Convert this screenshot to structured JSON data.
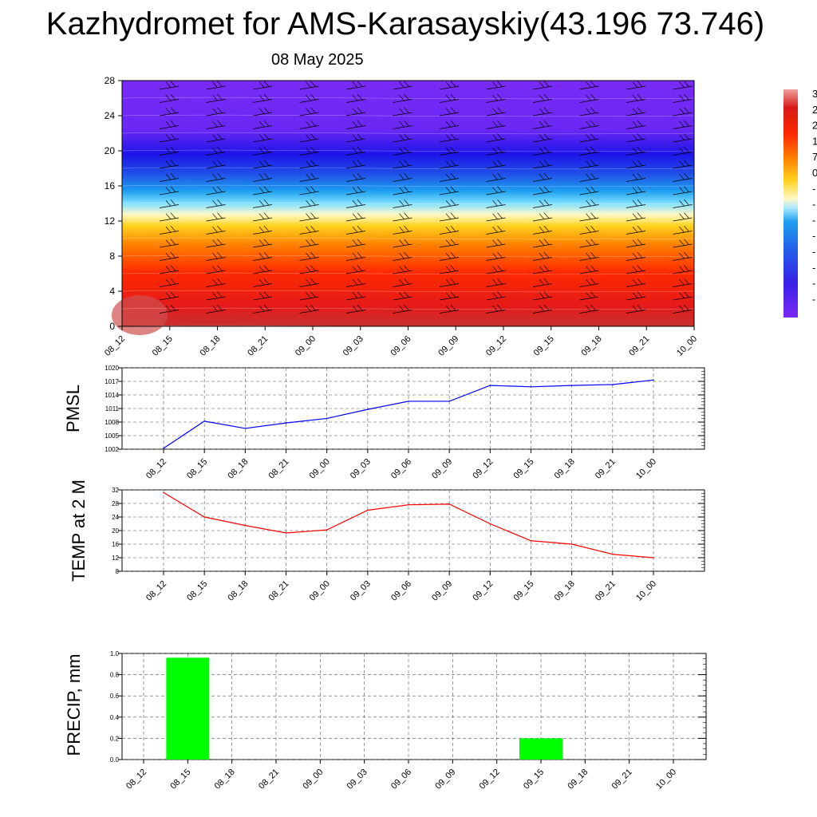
{
  "header": {
    "title": "Kazhydromet for AMS-Karasayskiy(43.196 73.746)",
    "subtitle": "08 May 2025"
  },
  "time_labels": [
    "08_12",
    "08_15",
    "08_18",
    "08_21",
    "09_00",
    "09_03",
    "09_06",
    "09_09",
    "09_12",
    "09_15",
    "09_18",
    "09_21",
    "10_00"
  ],
  "colors": {
    "pmsl_line": "#0000ff",
    "temp_line": "#ff0000",
    "precip_bar": "#00ff00",
    "grid": "#555555"
  },
  "chart_data": [
    {
      "type": "heatmap",
      "title": "Kazhydromet for AMS-Karasayskiy(43.196 73.746)",
      "subtitle": "08 May 2025",
      "x_categories": [
        "08_12",
        "08_15",
        "08_18",
        "08_21",
        "09_00",
        "09_03",
        "09_06",
        "09_09",
        "09_12",
        "09_15",
        "09_18",
        "09_21",
        "10_00"
      ],
      "y_ticks": [
        0,
        4,
        8,
        12,
        16,
        20,
        24,
        28
      ],
      "ylim": [
        0,
        28
      ],
      "colorbar_labels": [
        "3",
        "2",
        "2",
        "1",
        "7",
        "0",
        "-",
        "-",
        "-",
        "-",
        "-",
        "-",
        "-",
        "-"
      ],
      "colormap": "purple-blue-cyan-yellow-orange-red",
      "grid": false,
      "barbs": true
    },
    {
      "type": "line",
      "ylabel": "PMSL",
      "x": [
        "08_12",
        "08_15",
        "08_18",
        "08_21",
        "09_00",
        "09_03",
        "09_06",
        "09_09",
        "09_12",
        "09_15",
        "09_18",
        "09_21",
        "10_00"
      ],
      "y_ticks": [
        1002,
        1005,
        1008,
        1011,
        1014,
        1017,
        1020
      ],
      "ylim": [
        1002,
        1020
      ],
      "values": [
        1002.2,
        1008.2,
        1006.6,
        1007.8,
        1008.8,
        1010.8,
        1012.6,
        1012.6,
        1016.1,
        1015.8,
        1016.1,
        1016.3,
        1017.3
      ],
      "grid": true
    },
    {
      "type": "line",
      "ylabel": "TEMP at 2 M",
      "x": [
        "08_12",
        "08_15",
        "08_18",
        "08_21",
        "09_00",
        "09_03",
        "09_06",
        "09_09",
        "09_12",
        "09_15",
        "09_18",
        "09_21",
        "10_00"
      ],
      "y_ticks": [
        8,
        12,
        16,
        20,
        24,
        28,
        32
      ],
      "ylim": [
        8,
        32
      ],
      "values": [
        31.2,
        24.0,
        21.5,
        19.3,
        20.2,
        26.0,
        27.6,
        27.8,
        22.0,
        17.0,
        16.0,
        13.0,
        12.0
      ],
      "grid": true
    },
    {
      "type": "bar",
      "ylabel": "PRECIP, mm",
      "categories": [
        "08_12",
        "08_15",
        "08_18",
        "08_21",
        "09_00",
        "09_03",
        "09_06",
        "09_09",
        "09_12",
        "09_15",
        "09_18",
        "09_21",
        "10_00"
      ],
      "values": [
        0,
        0.96,
        0,
        0,
        0,
        0,
        0,
        0,
        0,
        0.2,
        0,
        0,
        0
      ],
      "y_ticks": [
        "0.0",
        "0.2",
        "0.4",
        "0.6",
        "0.8",
        "1.0"
      ],
      "ylim": [
        0,
        1
      ],
      "grid": true
    }
  ]
}
